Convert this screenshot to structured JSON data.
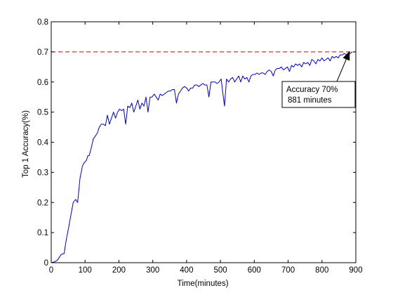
{
  "chart_data": {
    "type": "line",
    "xlabel": "Time(minutes)",
    "ylabel": "Top 1 Accuracy(%)",
    "xlim": [
      0,
      900
    ],
    "ylim": [
      0,
      0.8
    ],
    "x_ticks": [
      0,
      100,
      200,
      300,
      400,
      500,
      600,
      700,
      800,
      900
    ],
    "x_tick_labels": [
      "0",
      "100",
      "200",
      "300",
      "400",
      "500",
      "600",
      "700",
      "800",
      "900"
    ],
    "y_ticks": [
      0,
      0.1,
      0.2,
      0.3,
      0.4,
      0.5,
      0.6,
      0.7,
      0.8
    ],
    "y_tick_labels": [
      "0",
      "0.1",
      "0.2",
      "0.3",
      "0.4",
      "0.5",
      "0.6",
      "0.7",
      "0.8"
    ],
    "grid": false,
    "series": [
      {
        "color": "#0000cc",
        "x": [
          0,
          10,
          18,
          25,
          30,
          38,
          45,
          52,
          60,
          65,
          72,
          78,
          85,
          92,
          96,
          104,
          108,
          112,
          118,
          124,
          130,
          136,
          142,
          148,
          154,
          160,
          166,
          172,
          178,
          184,
          190,
          196,
          202,
          208,
          214,
          220,
          226,
          232,
          238,
          244,
          250,
          256,
          262,
          268,
          274,
          280,
          286,
          292,
          298,
          304,
          310,
          316,
          322,
          328,
          334,
          340,
          346,
          352,
          358,
          364,
          370,
          376,
          382,
          388,
          394,
          400,
          406,
          412,
          418,
          424,
          430,
          436,
          442,
          448,
          454,
          460,
          466,
          472,
          478,
          484,
          490,
          496,
          502,
          508,
          512,
          518,
          524,
          530,
          536,
          542,
          548,
          554,
          560,
          566,
          572,
          578,
          584,
          590,
          596,
          602,
          608,
          614,
          620,
          626,
          632,
          638,
          644,
          650,
          656,
          662,
          668,
          674,
          680,
          686,
          692,
          698,
          704,
          710,
          716,
          722,
          728,
          734,
          740,
          746,
          752,
          758,
          764,
          770,
          776,
          782,
          788,
          794,
          800,
          806,
          812,
          818,
          824,
          830,
          836,
          842,
          848,
          854,
          860,
          866,
          872,
          878,
          884,
          890
        ],
        "y": [
          0.0,
          0.003,
          0.008,
          0.02,
          0.028,
          0.03,
          0.08,
          0.12,
          0.17,
          0.2,
          0.21,
          0.2,
          0.28,
          0.32,
          0.33,
          0.34,
          0.355,
          0.355,
          0.38,
          0.41,
          0.42,
          0.43,
          0.45,
          0.46,
          0.46,
          0.455,
          0.49,
          0.46,
          0.48,
          0.5,
          0.48,
          0.5,
          0.51,
          0.505,
          0.51,
          0.46,
          0.52,
          0.515,
          0.53,
          0.5,
          0.52,
          0.54,
          0.51,
          0.53,
          0.52,
          0.55,
          0.5,
          0.55,
          0.55,
          0.56,
          0.55,
          0.54,
          0.56,
          0.555,
          0.56,
          0.565,
          0.57,
          0.57,
          0.575,
          0.575,
          0.53,
          0.56,
          0.57,
          0.58,
          0.585,
          0.58,
          0.57,
          0.58,
          0.58,
          0.59,
          0.59,
          0.585,
          0.59,
          0.595,
          0.59,
          0.59,
          0.55,
          0.6,
          0.6,
          0.6,
          0.595,
          0.6,
          0.61,
          0.555,
          0.52,
          0.61,
          0.6,
          0.61,
          0.615,
          0.6,
          0.61,
          0.62,
          0.6,
          0.62,
          0.61,
          0.615,
          0.6,
          0.62,
          0.625,
          0.625,
          0.63,
          0.625,
          0.63,
          0.63,
          0.625,
          0.635,
          0.64,
          0.635,
          0.62,
          0.64,
          0.645,
          0.645,
          0.65,
          0.64,
          0.645,
          0.65,
          0.635,
          0.655,
          0.65,
          0.66,
          0.655,
          0.66,
          0.65,
          0.665,
          0.66,
          0.665,
          0.655,
          0.675,
          0.67,
          0.66,
          0.675,
          0.67,
          0.68,
          0.67,
          0.675,
          0.68,
          0.67,
          0.685,
          0.68,
          0.685,
          0.68,
          0.69,
          0.69,
          0.695,
          0.69,
          0.695,
          0.695,
          0.7
        ]
      }
    ],
    "reference_line": {
      "y": 0.7,
      "color": "#cc0000",
      "style": "dashed"
    },
    "annotation": {
      "lines": [
        "Accuracy 70%",
        "881 minutes"
      ],
      "point": {
        "x": 881,
        "y": 0.7
      }
    }
  }
}
